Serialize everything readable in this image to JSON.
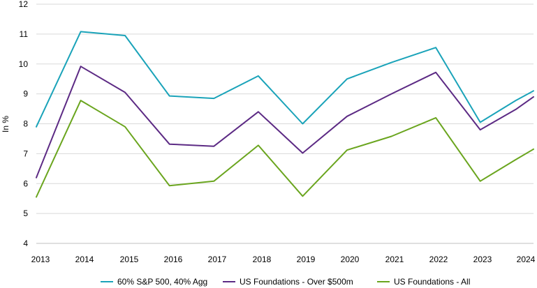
{
  "chart_data": {
    "type": "line",
    "title": "",
    "xlabel": "",
    "ylabel": "In %",
    "ylim": [
      4,
      12
    ],
    "yticks": [
      4,
      5,
      6,
      7,
      8,
      9,
      10,
      11,
      12
    ],
    "grid": "horizontal",
    "legend_position": "bottom",
    "categories": [
      "2013",
      "2014",
      "2015",
      "2016",
      "2017",
      "2018",
      "2019",
      "2020",
      "2021",
      "2022",
      "2023",
      "2024",
      "2024"
    ],
    "x": [
      2013,
      2014,
      2015,
      2016,
      2017,
      2018,
      2019,
      2020,
      2021,
      2022,
      2023,
      2023.8,
      2024.2
    ],
    "series": [
      {
        "name": "60% S&P 500, 40% Agg",
        "color": "#1aa3b9",
        "values": [
          7.9,
          11.08,
          10.95,
          8.93,
          8.85,
          9.6,
          8.0,
          9.5,
          10.05,
          10.55,
          8.05,
          8.78,
          9.1
        ]
      },
      {
        "name": "US Foundations - Over $500m",
        "color": "#5c2a84",
        "values": [
          6.2,
          9.92,
          9.05,
          7.32,
          7.25,
          8.4,
          7.02,
          8.25,
          9.0,
          9.72,
          7.8,
          8.48,
          8.9
        ]
      },
      {
        "name": "US Foundations - All",
        "color": "#6aa51e",
        "values": [
          5.55,
          8.78,
          7.9,
          5.93,
          6.08,
          7.28,
          5.58,
          7.12,
          7.58,
          8.2,
          6.08,
          6.8,
          7.15
        ]
      }
    ]
  }
}
